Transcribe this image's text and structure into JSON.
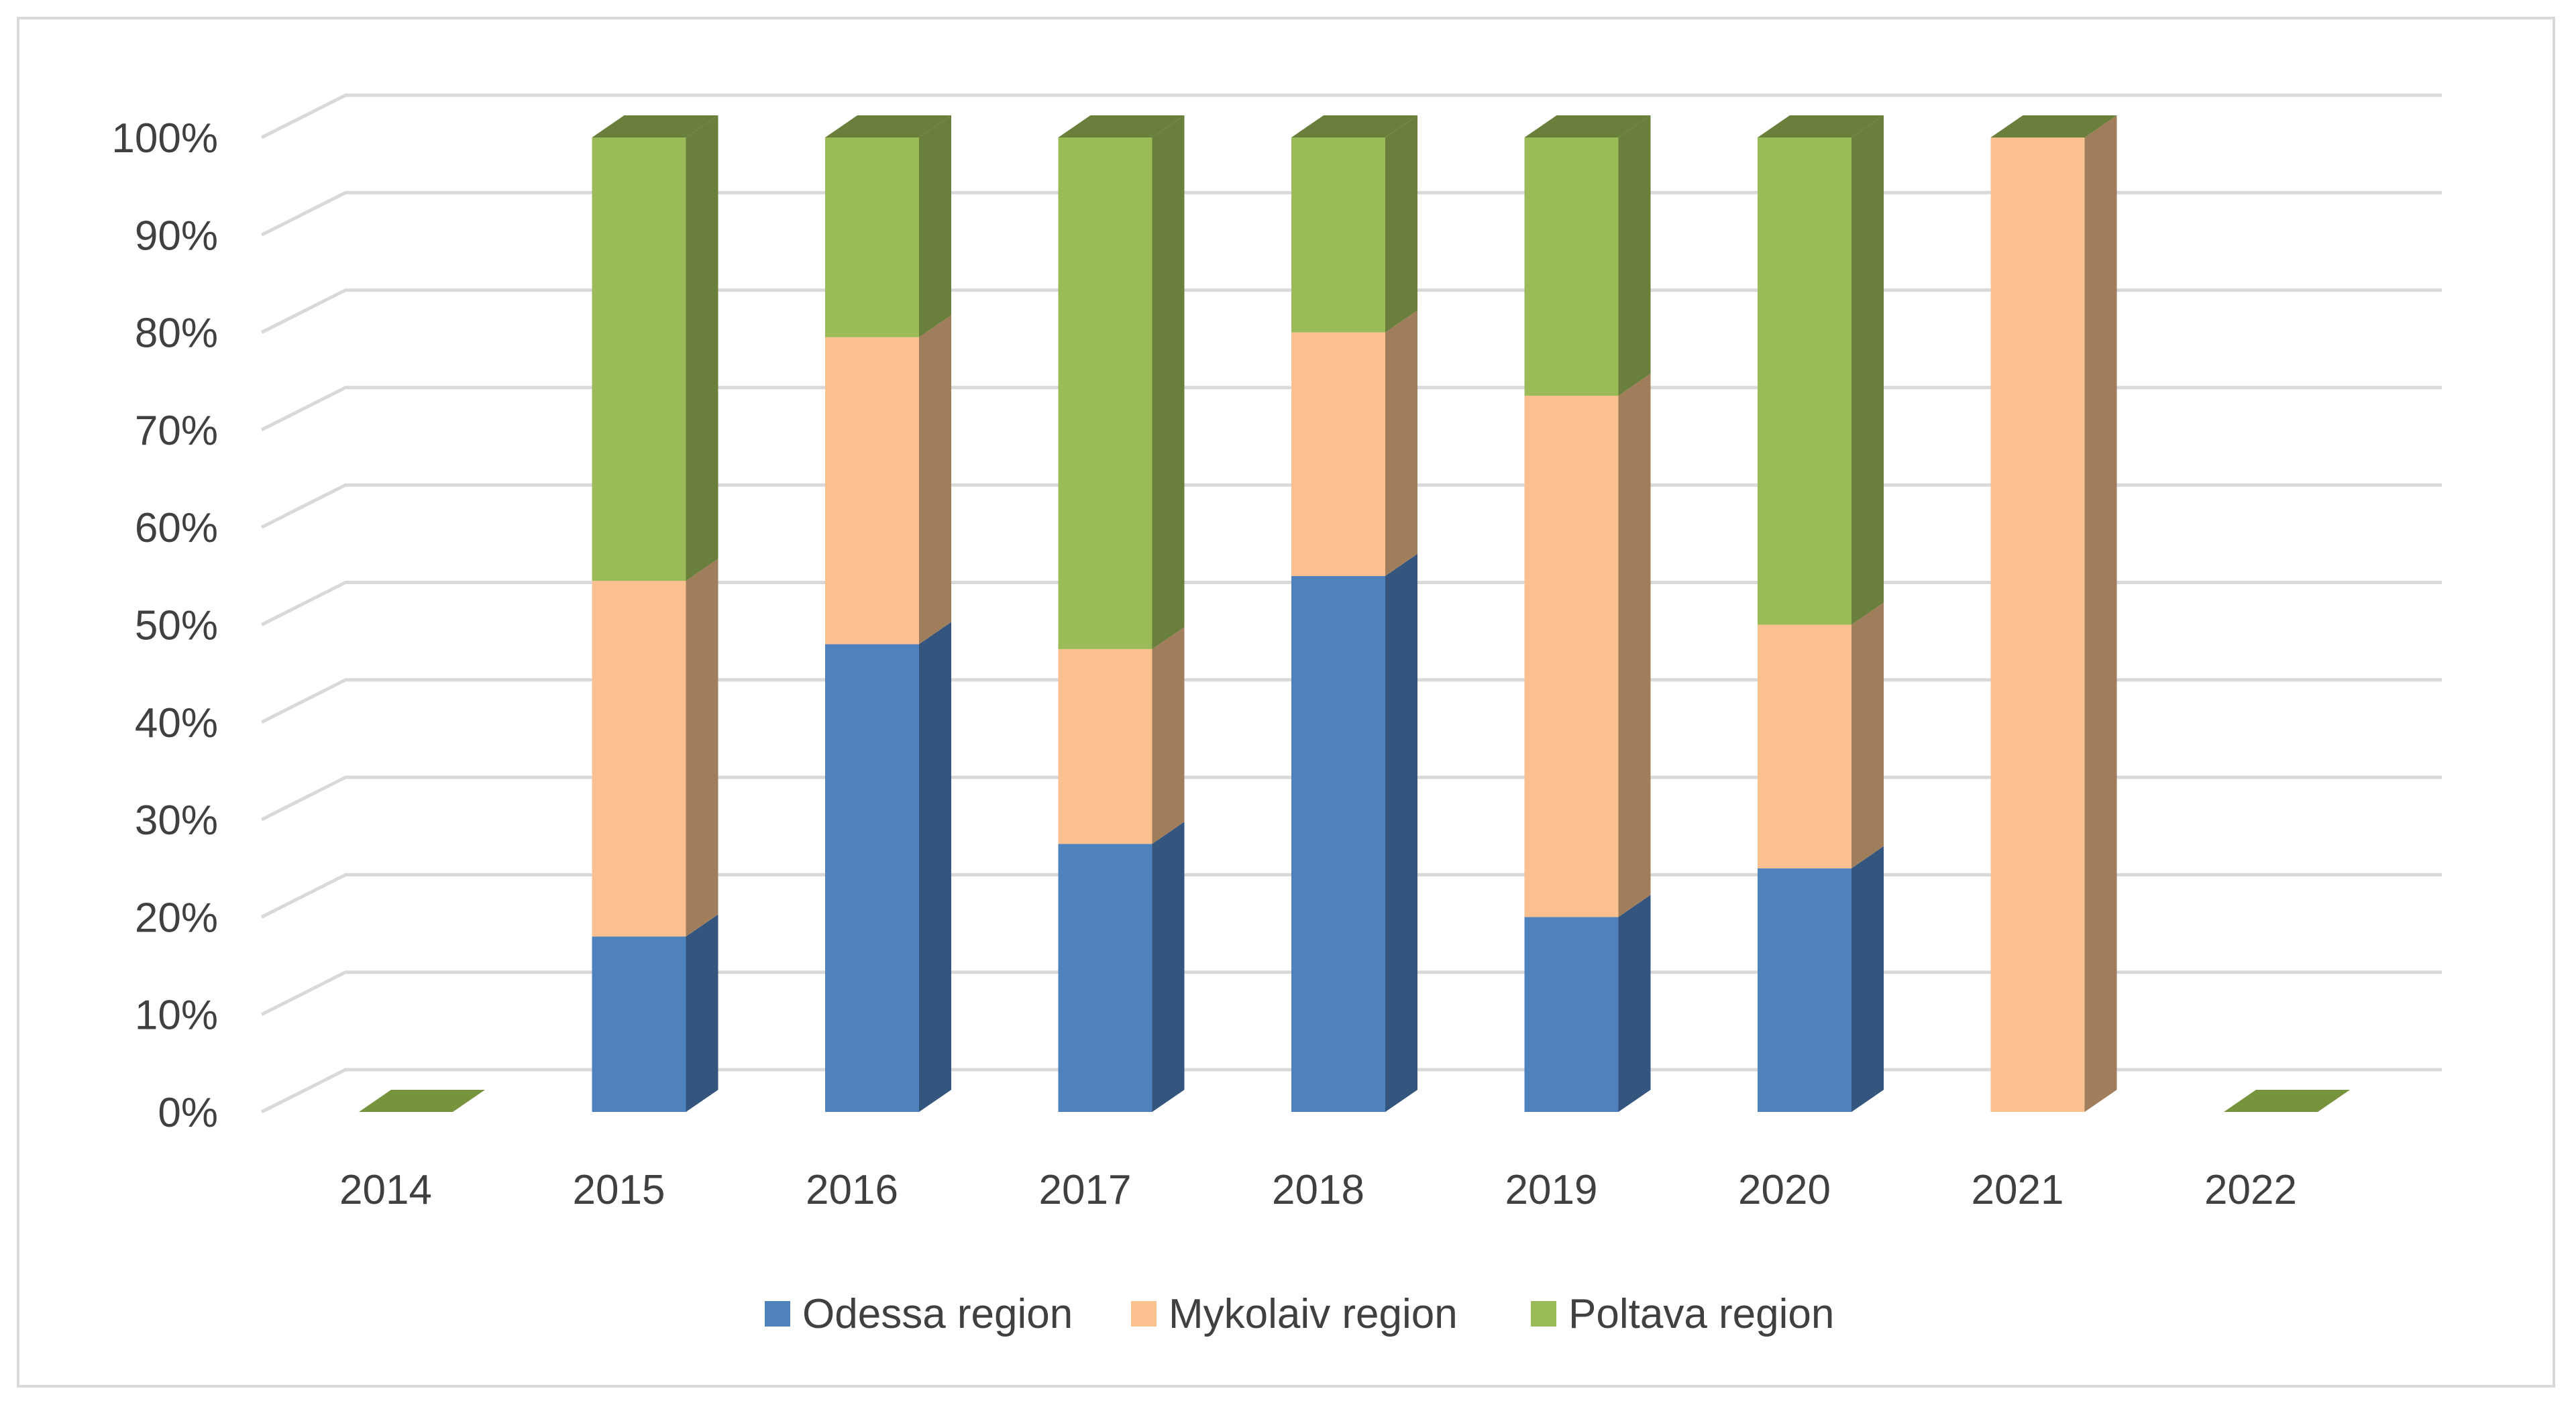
{
  "chart_data": {
    "type": "bar",
    "subtype": "3d-stacked-100-percent",
    "title": "",
    "xlabel": "",
    "ylabel": "",
    "categories": [
      "2014",
      "2015",
      "2016",
      "2017",
      "2018",
      "2019",
      "2020",
      "2021",
      "2022"
    ],
    "series": [
      {
        "name": "Odessa region",
        "color": "#4f81bd",
        "side_color": "#34557e",
        "values": [
          0,
          18,
          48,
          27.5,
          55,
          20,
          25,
          0,
          0
        ]
      },
      {
        "name": "Mykolaiv region",
        "color": "#fac090",
        "side_color": "#a07d5b",
        "values": [
          0,
          36.5,
          31.5,
          20,
          25,
          53.5,
          25,
          100,
          0
        ]
      },
      {
        "name": "Poltava region",
        "color": "#9bbb59",
        "side_color": "#6a7f3b",
        "values": [
          0,
          45.5,
          20.5,
          52.5,
          20,
          26.5,
          50,
          0,
          0
        ]
      }
    ],
    "y_ticks": [
      "0%",
      "10%",
      "20%",
      "30%",
      "40%",
      "50%",
      "60%",
      "70%",
      "80%",
      "90%",
      "100%"
    ],
    "ylim": [
      0,
      100
    ],
    "grid": true,
    "legend_position": "bottom",
    "empty_top_color": "#77933c"
  }
}
